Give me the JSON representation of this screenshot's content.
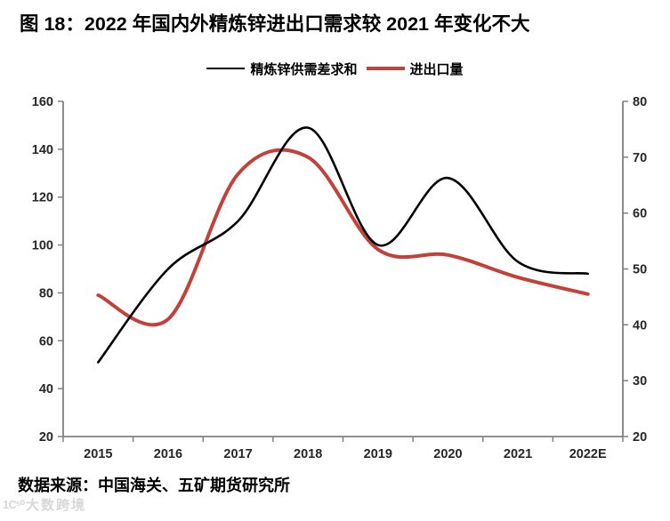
{
  "title": "图 18：2022 年国内外精炼锌进出口需求较 2021 年变化不大",
  "source": "数据来源：中国海关、五矿期货研究所",
  "watermark": {
    "logo": "1C⁵⁰",
    "text": "大数跨境"
  },
  "chart_data": {
    "type": "line",
    "title": "图 18：2022 年国内外精炼锌进出口需求较 2021 年变化不大",
    "categories": [
      "2015",
      "2016",
      "2017",
      "2018",
      "2019",
      "2020",
      "2021",
      "2022E"
    ],
    "series": [
      {
        "name": "精炼锌供需差求和",
        "axis": "left",
        "color": "#000000",
        "stroke_width": 2.6,
        "values": [
          51,
          90,
          110,
          149,
          100,
          128,
          93,
          88
        ]
      },
      {
        "name": "进出口量",
        "axis": "right",
        "color": "#c2423a",
        "stroke_width": 4,
        "values": [
          45.3,
          41,
          67,
          70,
          53.5,
          52.5,
          48.5,
          45.5
        ]
      }
    ],
    "left_axis": {
      "min": 20,
      "max": 160,
      "ticks": [
        160,
        140,
        120,
        100,
        80,
        60,
        40,
        20
      ]
    },
    "right_axis": {
      "min": 20,
      "max": 80,
      "ticks": [
        80,
        70,
        60,
        50,
        40,
        30,
        20
      ]
    },
    "xlabel": "",
    "ylabel": "",
    "axis_color": "#808080",
    "tick_label_color": "#262626",
    "grid": false,
    "legend_position": "top"
  }
}
